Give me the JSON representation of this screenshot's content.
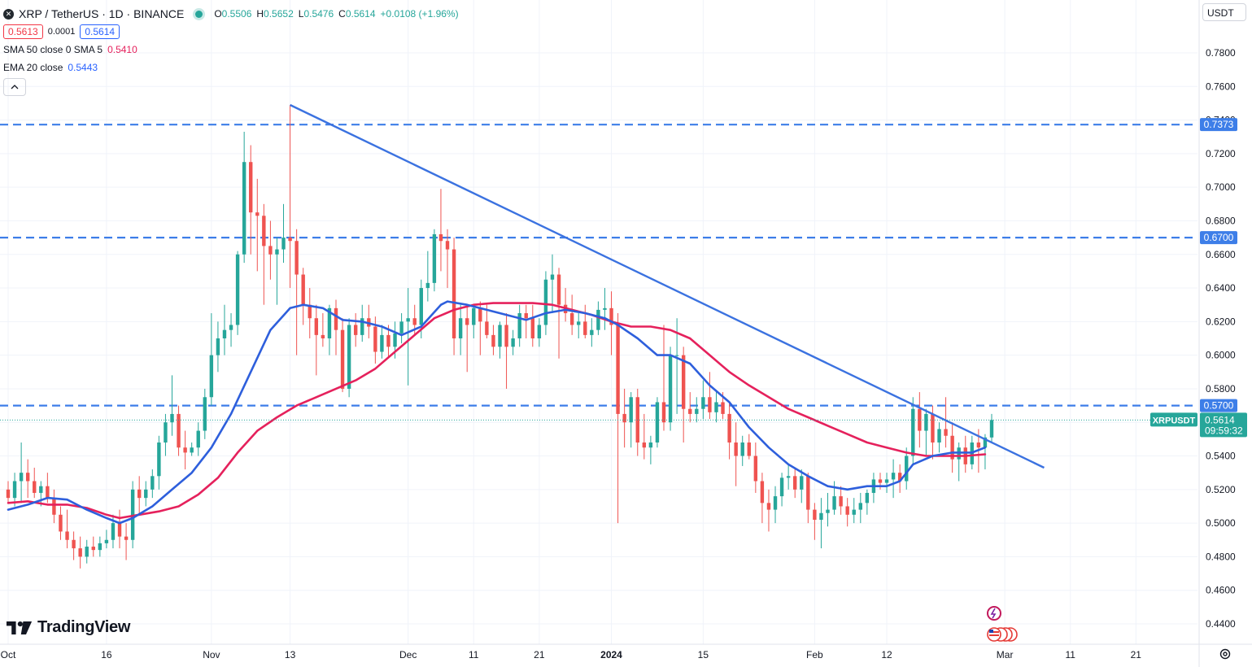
{
  "header": {
    "symbol_icon": "x-icon",
    "title": "XRP / TetherUS · 1D · BINANCE",
    "ohlc": {
      "o_label": "O",
      "o": "0.5506",
      "h_label": "H",
      "h": "0.5652",
      "l_label": "L",
      "l": "0.5476",
      "c_label": "C",
      "c": "0.5614",
      "change": "+0.0108 (+1.96%)"
    },
    "sell_price": "0.5613",
    "spread": "0.0001",
    "buy_price": "0.5614",
    "collapse_icon": "chevron-up-icon"
  },
  "indicators": [
    {
      "label": "SMA 50 close 0 SMA 5",
      "value": "0.5410",
      "color": "#e5215c"
    },
    {
      "label": "EMA 20 close",
      "value": "0.5443",
      "color": "#2962ff"
    }
  ],
  "currency": "USDT",
  "logo": "TradingView",
  "colors": {
    "up": "#26a69a",
    "down": "#ef5350",
    "sma": "#e5215c",
    "ema": "#2e5fdc",
    "level": "#3d7ee8",
    "trend": "#3b72e0"
  },
  "chart_data": {
    "type": "candlestick",
    "yaxis": {
      "range": [
        0.43,
        0.79
      ],
      "ticks": [
        "0.7800",
        "0.7600",
        "0.7400",
        "0.7200",
        "0.7000",
        "0.6800",
        "0.6600",
        "0.6400",
        "0.6200",
        "0.6000",
        "0.5800",
        "0.5600",
        "0.5400",
        "0.5200",
        "0.5000",
        "0.4800",
        "0.4600",
        "0.4400"
      ]
    },
    "xaxis": {
      "labels": [
        {
          "t": "Oct",
          "i": 0
        },
        {
          "t": "16",
          "i": 15
        },
        {
          "t": "Nov",
          "i": 31
        },
        {
          "t": "13",
          "i": 43
        },
        {
          "t": "Dec",
          "i": 61
        },
        {
          "t": "11",
          "i": 71
        },
        {
          "t": "21",
          "i": 81
        },
        {
          "t": "2024",
          "i": 92,
          "bold": true
        },
        {
          "t": "15",
          "i": 106
        },
        {
          "t": "Feb",
          "i": 123
        },
        {
          "t": "12",
          "i": 134
        },
        {
          "t": "Mar",
          "i": 152
        },
        {
          "t": "11",
          "i": 162
        },
        {
          "t": "21",
          "i": 172
        }
      ]
    },
    "last_price": {
      "symbol": "XRPUSDT",
      "value": "0.5614",
      "countdown": "09:59:32",
      "y": 0.5614
    },
    "levels": [
      {
        "value": 0.7373,
        "label": "0.7373"
      },
      {
        "value": 0.67,
        "label": "0.6700"
      },
      {
        "value": 0.57,
        "label": "0.5700"
      }
    ],
    "trendline": {
      "from": {
        "i": 43,
        "y": 0.749
      },
      "to": {
        "i": 158,
        "y": 0.533
      }
    },
    "candles": [
      [
        0.52,
        0.525,
        0.512,
        0.515
      ],
      [
        0.515,
        0.53,
        0.51,
        0.525
      ],
      [
        0.525,
        0.548,
        0.512,
        0.53
      ],
      [
        0.53,
        0.538,
        0.515,
        0.525
      ],
      [
        0.525,
        0.533,
        0.515,
        0.518
      ],
      [
        0.518,
        0.525,
        0.51,
        0.522
      ],
      [
        0.522,
        0.53,
        0.512,
        0.515
      ],
      [
        0.515,
        0.52,
        0.5,
        0.505
      ],
      [
        0.505,
        0.51,
        0.49,
        0.495
      ],
      [
        0.495,
        0.508,
        0.485,
        0.49
      ],
      [
        0.49,
        0.495,
        0.478,
        0.485
      ],
      [
        0.485,
        0.492,
        0.473,
        0.48
      ],
      [
        0.48,
        0.49,
        0.476,
        0.486
      ],
      [
        0.486,
        0.492,
        0.48,
        0.484
      ],
      [
        0.484,
        0.492,
        0.48,
        0.488
      ],
      [
        0.488,
        0.496,
        0.485,
        0.49
      ],
      [
        0.49,
        0.505,
        0.485,
        0.5
      ],
      [
        0.5,
        0.508,
        0.485,
        0.492
      ],
      [
        0.492,
        0.5,
        0.478,
        0.49
      ],
      [
        0.49,
        0.525,
        0.485,
        0.52
      ],
      [
        0.52,
        0.528,
        0.505,
        0.515
      ],
      [
        0.515,
        0.525,
        0.51,
        0.52
      ],
      [
        0.52,
        0.532,
        0.515,
        0.528
      ],
      [
        0.528,
        0.552,
        0.52,
        0.548
      ],
      [
        0.548,
        0.565,
        0.54,
        0.56
      ],
      [
        0.56,
        0.588,
        0.552,
        0.565
      ],
      [
        0.565,
        0.57,
        0.54,
        0.545
      ],
      [
        0.545,
        0.555,
        0.532,
        0.542
      ],
      [
        0.542,
        0.548,
        0.54,
        0.545
      ],
      [
        0.545,
        0.56,
        0.54,
        0.555
      ],
      [
        0.555,
        0.58,
        0.55,
        0.575
      ],
      [
        0.575,
        0.625,
        0.57,
        0.6
      ],
      [
        0.6,
        0.62,
        0.59,
        0.61
      ],
      [
        0.61,
        0.63,
        0.6,
        0.615
      ],
      [
        0.615,
        0.625,
        0.605,
        0.618
      ],
      [
        0.618,
        0.662,
        0.612,
        0.66
      ],
      [
        0.66,
        0.733,
        0.655,
        0.715
      ],
      [
        0.715,
        0.725,
        0.66,
        0.685
      ],
      [
        0.685,
        0.705,
        0.65,
        0.683
      ],
      [
        0.683,
        0.69,
        0.63,
        0.665
      ],
      [
        0.665,
        0.68,
        0.645,
        0.66
      ],
      [
        0.66,
        0.67,
        0.63,
        0.663
      ],
      [
        0.663,
        0.69,
        0.655,
        0.67
      ],
      [
        0.67,
        0.749,
        0.64,
        0.668
      ],
      [
        0.668,
        0.675,
        0.6,
        0.648
      ],
      [
        0.648,
        0.652,
        0.618,
        0.63
      ],
      [
        0.63,
        0.64,
        0.61,
        0.622
      ],
      [
        0.622,
        0.63,
        0.588,
        0.612
      ],
      [
        0.612,
        0.625,
        0.605,
        0.61
      ],
      [
        0.61,
        0.63,
        0.6,
        0.628
      ],
      [
        0.628,
        0.633,
        0.6,
        0.615
      ],
      [
        0.615,
        0.622,
        0.578,
        0.58
      ],
      [
        0.58,
        0.622,
        0.575,
        0.618
      ],
      [
        0.618,
        0.625,
        0.605,
        0.612
      ],
      [
        0.612,
        0.63,
        0.608,
        0.622
      ],
      [
        0.622,
        0.63,
        0.61,
        0.617
      ],
      [
        0.617,
        0.623,
        0.595,
        0.602
      ],
      [
        0.602,
        0.618,
        0.598,
        0.612
      ],
      [
        0.612,
        0.618,
        0.598,
        0.605
      ],
      [
        0.605,
        0.62,
        0.598,
        0.613
      ],
      [
        0.613,
        0.625,
        0.607,
        0.62
      ],
      [
        0.62,
        0.64,
        0.582,
        0.622
      ],
      [
        0.622,
        0.63,
        0.612,
        0.618
      ],
      [
        0.618,
        0.645,
        0.61,
        0.64
      ],
      [
        0.64,
        0.662,
        0.632,
        0.643
      ],
      [
        0.643,
        0.675,
        0.638,
        0.672
      ],
      [
        0.672,
        0.699,
        0.65,
        0.668
      ],
      [
        0.668,
        0.675,
        0.64,
        0.663
      ],
      [
        0.663,
        0.67,
        0.6,
        0.61
      ],
      [
        0.61,
        0.63,
        0.6,
        0.622
      ],
      [
        0.622,
        0.63,
        0.59,
        0.618
      ],
      [
        0.618,
        0.63,
        0.61,
        0.628
      ],
      [
        0.628,
        0.632,
        0.6,
        0.62
      ],
      [
        0.62,
        0.63,
        0.61,
        0.612
      ],
      [
        0.612,
        0.618,
        0.6,
        0.605
      ],
      [
        0.605,
        0.62,
        0.598,
        0.618
      ],
      [
        0.618,
        0.625,
        0.58,
        0.605
      ],
      [
        0.605,
        0.615,
        0.6,
        0.61
      ],
      [
        0.61,
        0.63,
        0.605,
        0.625
      ],
      [
        0.625,
        0.63,
        0.61,
        0.622
      ],
      [
        0.622,
        0.63,
        0.605,
        0.61
      ],
      [
        0.61,
        0.622,
        0.605,
        0.618
      ],
      [
        0.618,
        0.65,
        0.612,
        0.645
      ],
      [
        0.645,
        0.66,
        0.625,
        0.648
      ],
      [
        0.648,
        0.652,
        0.598,
        0.63
      ],
      [
        0.63,
        0.64,
        0.62,
        0.625
      ],
      [
        0.625,
        0.636,
        0.612,
        0.618
      ],
      [
        0.618,
        0.625,
        0.61,
        0.62
      ],
      [
        0.62,
        0.63,
        0.61,
        0.612
      ],
      [
        0.612,
        0.622,
        0.605,
        0.615
      ],
      [
        0.615,
        0.632,
        0.612,
        0.627
      ],
      [
        0.627,
        0.64,
        0.615,
        0.628
      ],
      [
        0.628,
        0.638,
        0.6,
        0.618
      ],
      [
        0.618,
        0.625,
        0.5,
        0.565
      ],
      [
        0.565,
        0.58,
        0.545,
        0.56
      ],
      [
        0.56,
        0.578,
        0.545,
        0.575
      ],
      [
        0.575,
        0.58,
        0.54,
        0.548
      ],
      [
        0.548,
        0.565,
        0.538,
        0.545
      ],
      [
        0.545,
        0.552,
        0.535,
        0.548
      ],
      [
        0.548,
        0.575,
        0.545,
        0.572
      ],
      [
        0.572,
        0.618,
        0.555,
        0.56
      ],
      [
        0.56,
        0.605,
        0.555,
        0.6
      ],
      [
        0.6,
        0.622,
        0.565,
        0.6
      ],
      [
        0.6,
        0.605,
        0.548,
        0.568
      ],
      [
        0.568,
        0.578,
        0.56,
        0.565
      ],
      [
        0.565,
        0.575,
        0.56,
        0.568
      ],
      [
        0.568,
        0.585,
        0.562,
        0.575
      ],
      [
        0.575,
        0.59,
        0.562,
        0.566
      ],
      [
        0.566,
        0.578,
        0.56,
        0.572
      ],
      [
        0.572,
        0.578,
        0.562,
        0.565
      ],
      [
        0.565,
        0.572,
        0.538,
        0.548
      ],
      [
        0.548,
        0.56,
        0.522,
        0.54
      ],
      [
        0.54,
        0.552,
        0.534,
        0.548
      ],
      [
        0.548,
        0.553,
        0.538,
        0.54
      ],
      [
        0.54,
        0.548,
        0.518,
        0.525
      ],
      [
        0.525,
        0.53,
        0.5,
        0.512
      ],
      [
        0.512,
        0.52,
        0.495,
        0.508
      ],
      [
        0.508,
        0.522,
        0.5,
        0.516
      ],
      [
        0.516,
        0.53,
        0.51,
        0.527
      ],
      [
        0.527,
        0.535,
        0.52,
        0.528
      ],
      [
        0.528,
        0.533,
        0.515,
        0.52
      ],
      [
        0.52,
        0.532,
        0.512,
        0.528
      ],
      [
        0.528,
        0.53,
        0.5,
        0.508
      ],
      [
        0.508,
        0.512,
        0.49,
        0.502
      ],
      [
        0.502,
        0.515,
        0.485,
        0.506
      ],
      [
        0.506,
        0.518,
        0.498,
        0.508
      ],
      [
        0.508,
        0.525,
        0.505,
        0.516
      ],
      [
        0.516,
        0.522,
        0.505,
        0.51
      ],
      [
        0.51,
        0.515,
        0.498,
        0.505
      ],
      [
        0.505,
        0.515,
        0.5,
        0.508
      ],
      [
        0.508,
        0.518,
        0.5,
        0.512
      ],
      [
        0.512,
        0.52,
        0.505,
        0.518
      ],
      [
        0.518,
        0.53,
        0.512,
        0.526
      ],
      [
        0.526,
        0.53,
        0.52,
        0.524
      ],
      [
        0.524,
        0.53,
        0.518,
        0.526
      ],
      [
        0.526,
        0.538,
        0.515,
        0.53
      ],
      [
        0.53,
        0.535,
        0.518,
        0.525
      ],
      [
        0.525,
        0.545,
        0.52,
        0.54
      ],
      [
        0.54,
        0.575,
        0.535,
        0.568
      ],
      [
        0.568,
        0.578,
        0.545,
        0.555
      ],
      [
        0.555,
        0.568,
        0.54,
        0.565
      ],
      [
        0.565,
        0.57,
        0.538,
        0.548
      ],
      [
        0.548,
        0.56,
        0.542,
        0.556
      ],
      [
        0.556,
        0.575,
        0.545,
        0.552
      ],
      [
        0.552,
        0.56,
        0.53,
        0.538
      ],
      [
        0.538,
        0.548,
        0.525,
        0.545
      ],
      [
        0.545,
        0.552,
        0.53,
        0.535
      ],
      [
        0.535,
        0.552,
        0.532,
        0.548
      ],
      [
        0.548,
        0.556,
        0.53,
        0.545
      ],
      [
        0.545,
        0.553,
        0.532,
        0.551
      ],
      [
        0.551,
        0.565,
        0.548,
        0.5614
      ]
    ],
    "ema_20": [
      [
        0,
        0.508
      ],
      [
        3,
        0.511
      ],
      [
        6,
        0.515
      ],
      [
        9,
        0.514
      ],
      [
        12,
        0.508
      ],
      [
        15,
        0.503
      ],
      [
        17,
        0.5
      ],
      [
        19,
        0.503
      ],
      [
        22,
        0.51
      ],
      [
        25,
        0.52
      ],
      [
        28,
        0.53
      ],
      [
        31,
        0.545
      ],
      [
        34,
        0.565
      ],
      [
        37,
        0.59
      ],
      [
        40,
        0.615
      ],
      [
        43,
        0.628
      ],
      [
        45,
        0.63
      ],
      [
        48,
        0.628
      ],
      [
        51,
        0.621
      ],
      [
        54,
        0.62
      ],
      [
        57,
        0.617
      ],
      [
        60,
        0.612
      ],
      [
        63,
        0.617
      ],
      [
        66,
        0.63
      ],
      [
        67,
        0.632
      ],
      [
        70,
        0.63
      ],
      [
        73,
        0.627
      ],
      [
        76,
        0.624
      ],
      [
        79,
        0.621
      ],
      [
        82,
        0.625
      ],
      [
        85,
        0.627
      ],
      [
        88,
        0.625
      ],
      [
        91,
        0.622
      ],
      [
        93,
        0.618
      ],
      [
        96,
        0.61
      ],
      [
        99,
        0.6
      ],
      [
        101,
        0.6
      ],
      [
        104,
        0.595
      ],
      [
        107,
        0.582
      ],
      [
        110,
        0.572
      ],
      [
        113,
        0.557
      ],
      [
        116,
        0.545
      ],
      [
        119,
        0.535
      ],
      [
        122,
        0.528
      ],
      [
        125,
        0.522
      ],
      [
        128,
        0.52
      ],
      [
        131,
        0.522
      ],
      [
        134,
        0.522
      ],
      [
        136,
        0.525
      ],
      [
        138,
        0.535
      ],
      [
        141,
        0.54
      ],
      [
        144,
        0.542
      ],
      [
        147,
        0.542
      ],
      [
        149,
        0.545
      ]
    ],
    "sma_50": [
      [
        0,
        0.512
      ],
      [
        3,
        0.513
      ],
      [
        6,
        0.511
      ],
      [
        9,
        0.511
      ],
      [
        12,
        0.509
      ],
      [
        15,
        0.505
      ],
      [
        17,
        0.503
      ],
      [
        20,
        0.505
      ],
      [
        23,
        0.507
      ],
      [
        26,
        0.51
      ],
      [
        29,
        0.517
      ],
      [
        32,
        0.527
      ],
      [
        35,
        0.542
      ],
      [
        38,
        0.555
      ],
      [
        41,
        0.563
      ],
      [
        44,
        0.57
      ],
      [
        47,
        0.575
      ],
      [
        50,
        0.58
      ],
      [
        53,
        0.585
      ],
      [
        56,
        0.592
      ],
      [
        59,
        0.602
      ],
      [
        62,
        0.612
      ],
      [
        65,
        0.622
      ],
      [
        68,
        0.627
      ],
      [
        71,
        0.63
      ],
      [
        74,
        0.631
      ],
      [
        77,
        0.631
      ],
      [
        80,
        0.631
      ],
      [
        83,
        0.63
      ],
      [
        86,
        0.627
      ],
      [
        89,
        0.624
      ],
      [
        92,
        0.62
      ],
      [
        95,
        0.617
      ],
      [
        98,
        0.617
      ],
      [
        101,
        0.615
      ],
      [
        104,
        0.61
      ],
      [
        107,
        0.6
      ],
      [
        110,
        0.59
      ],
      [
        113,
        0.582
      ],
      [
        116,
        0.575
      ],
      [
        119,
        0.568
      ],
      [
        122,
        0.563
      ],
      [
        125,
        0.558
      ],
      [
        128,
        0.553
      ],
      [
        131,
        0.548
      ],
      [
        134,
        0.545
      ],
      [
        137,
        0.542
      ],
      [
        140,
        0.54
      ],
      [
        143,
        0.54
      ],
      [
        146,
        0.54
      ],
      [
        149,
        0.541
      ]
    ]
  }
}
